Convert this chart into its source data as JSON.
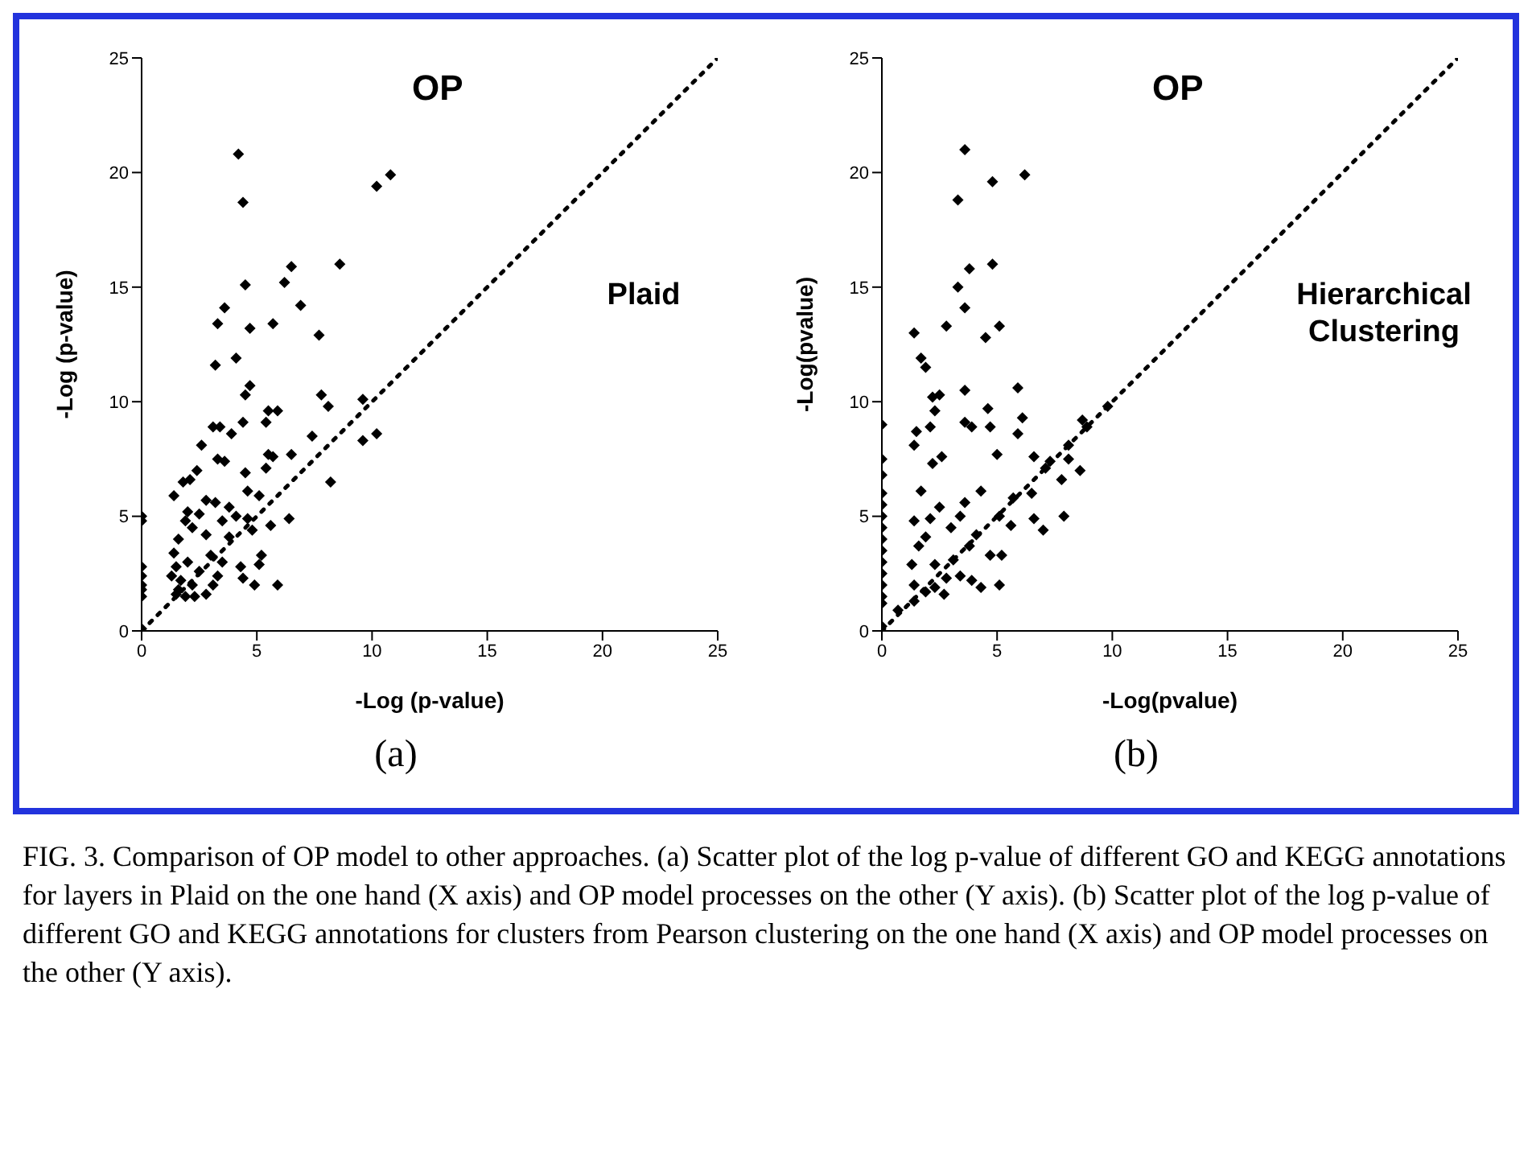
{
  "chart_data": [
    {
      "type": "scatter",
      "xlabel": "-Log (p-value)",
      "ylabel": "-Log (p-value)",
      "annotations": [
        "OP",
        "Plaid",
        "(a)"
      ],
      "xlim": [
        0,
        25
      ],
      "ylim": [
        0,
        25
      ],
      "xticks": [
        0,
        5,
        10,
        15,
        20,
        25
      ],
      "yticks": [
        0,
        5,
        10,
        15,
        20,
        25
      ],
      "grid": false,
      "legend": false,
      "series": [
        {
          "marker": "diamond",
          "color": "#000000",
          "x": [
            4.2,
            4.4,
            4.5,
            3.6,
            3.3,
            4.7,
            5.7,
            3.2,
            4.1,
            4.7,
            4.5,
            6.2,
            6.5,
            6.9,
            8.6,
            7.7,
            7.8,
            8.1,
            5.5,
            5.9,
            5.4,
            3.1,
            3.4,
            4.4,
            3.9,
            2.6,
            7.4,
            8.2,
            6.5,
            5.5,
            5.7,
            5.4,
            3.3,
            3.6,
            2.4,
            2.1,
            1.8,
            1.4,
            2.8,
            3.2,
            4.6,
            5.1,
            4.5,
            6.4,
            5.6,
            5.2,
            5.9,
            5.1,
            4.9,
            4.4,
            4.1,
            4.6,
            4.8,
            3.8,
            3.5,
            3.0,
            2.8,
            2.5,
            2.2,
            1.9,
            1.6,
            1.4,
            1.5,
            1.7,
            1.5,
            1.9,
            2.2,
            2.5,
            2.8,
            3.1,
            2.0,
            2.3,
            1.3,
            1.6,
            3.5,
            3.8,
            2.0,
            4.3,
            3.3,
            9.6,
            9.6,
            10.2,
            10.2,
            10.8,
            0,
            0,
            0,
            0,
            0,
            0,
            0,
            0
          ],
          "values": [
            20.8,
            18.7,
            15.1,
            14.1,
            13.4,
            13.2,
            13.4,
            11.6,
            11.9,
            10.7,
            10.3,
            15.2,
            15.9,
            14.2,
            16.0,
            12.9,
            10.3,
            9.8,
            9.6,
            9.6,
            9.1,
            8.9,
            8.9,
            9.1,
            8.6,
            8.1,
            8.5,
            6.5,
            7.7,
            7.7,
            7.6,
            7.1,
            7.5,
            7.4,
            7.0,
            6.6,
            6.5,
            5.9,
            5.7,
            5.6,
            6.1,
            5.9,
            6.9,
            4.9,
            4.6,
            3.3,
            2.0,
            2.9,
            2.0,
            2.3,
            5.0,
            4.9,
            4.4,
            4.1,
            3.0,
            3.3,
            4.2,
            5.1,
            4.5,
            4.8,
            4.0,
            3.4,
            2.8,
            2.2,
            1.6,
            1.5,
            2.0,
            2.6,
            1.6,
            2.0,
            3.0,
            1.5,
            2.4,
            1.8,
            4.8,
            5.4,
            5.2,
            2.8,
            2.4,
            10.1,
            8.3,
            8.6,
            19.4,
            19.9,
            5.0,
            4.8,
            2.8,
            2.4,
            2.0,
            1.8,
            1.5,
            0.1
          ]
        },
        {
          "type": "line",
          "line_style": "dotted",
          "color": "#000000",
          "x": [
            0,
            25
          ],
          "values": [
            0,
            25
          ]
        }
      ]
    },
    {
      "type": "scatter",
      "xlabel": "-Log(pvalue)",
      "ylabel": "-Log(pvalue)",
      "annotations": [
        "OP",
        "Hierarchical Clustering",
        "(b)",
        "FIG. 3.    Comparison of OP model to other approaches. (a) Scatter plot of the log p-value of different GO and KEGG annotations for layers in Plaid on the one hand (X axis) and OP model processes on the other (Y axis). (b) Scatter plot of the log p-value of different GO and KEGG annotations for clusters from Pearson clustering on the one hand (X axis) and OP model processes on the other (Y axis)."
      ],
      "xlim": [
        0,
        25
      ],
      "ylim": [
        0,
        25
      ],
      "xticks": [
        0,
        5,
        10,
        15,
        20,
        25
      ],
      "yticks": [
        0,
        5,
        10,
        15,
        20,
        25
      ],
      "grid": false,
      "legend": false,
      "series": [
        {
          "marker": "diamond",
          "color": "#000000",
          "x": [
            3.6,
            3.3,
            4.8,
            6.2,
            4.8,
            3.8,
            3.3,
            3.6,
            2.8,
            1.4,
            4.5,
            5.1,
            1.7,
            1.9,
            2.2,
            2.5,
            2.3,
            3.6,
            3.6,
            3.9,
            2.1,
            1.5,
            1.4,
            2.6,
            2.2,
            4.6,
            4.7,
            5.9,
            6.1,
            5.9,
            6.6,
            5.0,
            7.1,
            7.3,
            7.8,
            8.1,
            8.1,
            8.7,
            8.9,
            9.8,
            8.6,
            7.9,
            7.0,
            6.6,
            6.5,
            5.7,
            5.6,
            5.1,
            5.2,
            5.1,
            4.7,
            4.3,
            4.1,
            3.8,
            4.3,
            3.9,
            3.4,
            3.4,
            3.6,
            3.0,
            2.5,
            2.3,
            2.7,
            2.8,
            2.1,
            1.9,
            1.6,
            1.3,
            1.4,
            1.9,
            2.3,
            1.4,
            1.7,
            1.4,
            3.1,
            0.7,
            0,
            0,
            0,
            0,
            0,
            0,
            0,
            0,
            0,
            0,
            0,
            0,
            0,
            0,
            0
          ],
          "values": [
            21.0,
            18.8,
            19.6,
            19.9,
            16.0,
            15.8,
            15.0,
            14.1,
            13.3,
            13.0,
            12.8,
            13.3,
            11.9,
            11.5,
            10.2,
            10.3,
            9.6,
            10.5,
            9.1,
            8.9,
            8.9,
            8.7,
            8.1,
            7.6,
            7.3,
            9.7,
            8.9,
            10.6,
            9.3,
            8.6,
            7.6,
            7.7,
            7.1,
            7.4,
            6.6,
            7.5,
            8.1,
            9.2,
            8.9,
            9.8,
            7.0,
            5.0,
            4.4,
            4.9,
            6.0,
            5.8,
            4.6,
            5.0,
            3.3,
            2.0,
            3.3,
            6.1,
            4.2,
            3.7,
            1.9,
            2.2,
            2.4,
            5.0,
            5.6,
            4.5,
            5.4,
            2.9,
            1.6,
            2.3,
            4.9,
            4.1,
            3.7,
            2.9,
            2.0,
            1.7,
            1.9,
            1.3,
            6.1,
            4.8,
            3.1,
            0.9,
            9.0,
            7.5,
            6.8,
            6.0,
            5.5,
            5.0,
            4.5,
            4.0,
            3.5,
            3.0,
            2.5,
            2.0,
            1.5,
            1.2,
            0.2
          ]
        },
        {
          "type": "line",
          "line_style": "dotted",
          "color": "#000000",
          "x": [
            0,
            25
          ],
          "values": [
            0,
            25
          ]
        }
      ]
    }
  ]
}
